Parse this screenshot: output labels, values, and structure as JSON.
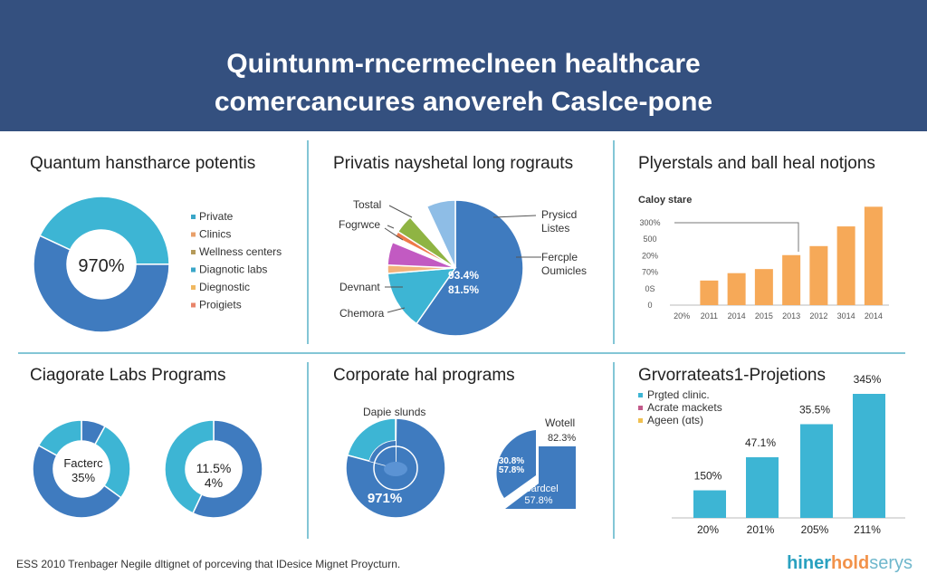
{
  "header": {
    "line1": "Quintunm-rncermeclneen healthcare",
    "line2": "comercancures anovereh Caslce-pone",
    "background": "#34507f"
  },
  "colors": {
    "blue": "#3f7bbf",
    "teal": "#3db5d4",
    "orange": "#f6a958",
    "divider": "#5ab3c9"
  },
  "footer": {
    "text": "ESS 2010 Trenbager Negile dltignet of porceving that IDesice Mignet Proycturn.",
    "logo": {
      "part1": "hiner",
      "part2": "hold",
      "part3": "serys"
    }
  },
  "chart_data": [
    {
      "type": "pie",
      "title": "Quantum hanstharce potentis",
      "center_label": "970%",
      "slices": [
        {
          "color": "#3db5d4",
          "value": 43
        },
        {
          "color": "#3f7bbf",
          "value": 57
        }
      ],
      "legend": [
        {
          "label": "Private",
          "color": "#3aa6c8"
        },
        {
          "label": "Clinics",
          "color": "#e9a06a"
        },
        {
          "label": "Wellness centers",
          "color": "#b59a5a"
        },
        {
          "label": "Diagnotic labs",
          "color": "#3aa6c8"
        },
        {
          "label": "Diegnostic",
          "color": "#f0b860"
        },
        {
          "label": "Proigiets",
          "color": "#e8846a"
        }
      ]
    },
    {
      "type": "pie",
      "title": "Privatis nayshetal long rograuts",
      "center_label_1": "93.4%",
      "center_label_2": "81.5%",
      "labels": [
        "Tostal",
        "Fogrwce",
        "Devnant",
        "Chemora",
        "Prysicd",
        "Listes",
        "Fercple",
        "Oumicles"
      ],
      "slices": [
        {
          "color": "#3f7bbf",
          "value": 59.7
        },
        {
          "color": "#3db5d4",
          "value": 14
        },
        {
          "color": "#f3b27a",
          "value": 2
        },
        {
          "color": "#c25ac2",
          "value": 5.5
        },
        {
          "color": "#ffffff",
          "value": 1.4
        },
        {
          "color": "#ee7a4a",
          "value": 1.4
        },
        {
          "color": "#8fb443",
          "value": 4.4
        },
        {
          "color": "#ffffff",
          "value": 4.7
        },
        {
          "color": "#8ebde6",
          "value": 6.9
        }
      ]
    },
    {
      "type": "bar",
      "title": "Plyerstals and ball heal notjons",
      "subtitle": "Caloy stare",
      "yticks": [
        "0",
        "0S",
        "70%",
        "20%",
        "500",
        "300%"
      ],
      "categories": [
        "20%",
        "2011",
        "2014",
        "2015",
        "2013",
        "2012",
        "3014",
        "2014"
      ],
      "values": [
        0,
        1.5,
        1.95,
        2.2,
        3.05,
        3.6,
        4.8,
        6.0
      ],
      "ylim": [
        0,
        6.5
      ],
      "color": "#f6a958"
    },
    {
      "type": "pie",
      "title": "Ciagorate Labs Programs",
      "donuts": [
        {
          "label_1": "Facterc",
          "label_2": "35%",
          "slices": [
            {
              "color": "#3f7bbf",
              "value": 8
            },
            {
              "color": "#3db5d4",
              "value": 27
            },
            {
              "color": "#3f7bbf",
              "value": 48
            },
            {
              "color": "#3db5d4",
              "value": 17
            }
          ]
        },
        {
          "label_1": "11.5%",
          "label_2": "4%",
          "slices": [
            {
              "color": "#3f7bbf",
              "value": 57
            },
            {
              "color": "#3db5d4",
              "value": 43
            }
          ]
        }
      ]
    },
    {
      "type": "pie",
      "title": "Corporate hal programs",
      "left_label": "Dapie slunds",
      "left_value": "971%",
      "right_label": "Wotell",
      "right_value": "82.3%",
      "inner_1": "30.8%",
      "inner_2": "57.8%",
      "inner_3": "Bardcel",
      "inner_4": "57.8%",
      "slices": [
        {
          "color": "#3db5d4",
          "value": 21
        },
        {
          "color": "#3f7bbf",
          "value": 79
        }
      ]
    },
    {
      "type": "bar",
      "title": "Grvorrateats1-Projetions",
      "legend": [
        {
          "label": "Prgted clinic.",
          "color": "#3db5d4"
        },
        {
          "label": "Acrate mackets",
          "color": "#c25a8a"
        },
        {
          "label": "Ageen (ɑts)",
          "color": "#f0c050"
        }
      ],
      "categories": [
        "20%",
        "201%",
        "205%",
        "211%"
      ],
      "data_labels": [
        "150%",
        "47.1%",
        "35.5%",
        "345%"
      ],
      "values": [
        1,
        2.2,
        3.4,
        4.5
      ],
      "ylim": [
        0,
        4.8
      ],
      "color": "#3db5d4"
    }
  ]
}
